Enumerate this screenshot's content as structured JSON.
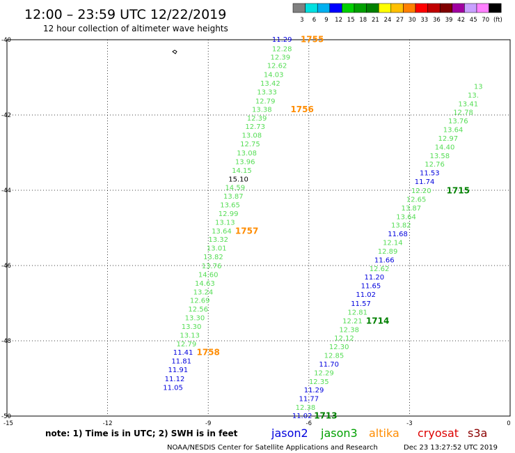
{
  "title": "12:00 – 23:59 UTC 12/22/2019",
  "subtitle": "12 hour collection of altimeter wave heights",
  "colorbar": {
    "colors": [
      "#808080",
      "#00e0e0",
      "#00b0f0",
      "#0000ff",
      "#00d000",
      "#00a000",
      "#008000",
      "#ffff00",
      "#ffc000",
      "#ff8000",
      "#ff0000",
      "#c00000",
      "#800000",
      "#a000a0",
      "#c8a0ff",
      "#ff80ff",
      "#000000"
    ],
    "labels": [
      "3",
      "6",
      "9",
      "12",
      "15",
      "18",
      "21",
      "24",
      "27",
      "30",
      "33",
      "36",
      "39",
      "42",
      "45",
      "70",
      "(ft)"
    ]
  },
  "note": "note:  1) Time is in UTC;  2) SWH is in feet",
  "legend": [
    {
      "name": "jason2",
      "color": "#0000dd"
    },
    {
      "name": "jason3",
      "color": "#00a000"
    },
    {
      "name": "altika",
      "color": "#ff8c00"
    },
    {
      "name": "cryosat",
      "color": "#dd0000"
    },
    {
      "name": "s3a",
      "color": "#8b0000"
    }
  ],
  "footer": {
    "credit": "NOAA/NESDIS Center for Satellite Applications and Research",
    "timestamp": "Dec 23 13:27:52 UTC 2019"
  },
  "chart_data": {
    "type": "scatter",
    "title": "12:00 – 23:59 UTC 12/22/2019",
    "subtitle": "12 hour collection of altimeter wave heights",
    "xlim": [
      -15,
      0
    ],
    "ylim": [
      -50,
      -40
    ],
    "x_ticks": [
      "-15",
      "-12",
      "-9",
      "-6",
      "-3",
      "0"
    ],
    "y_ticks": [
      "-40",
      "-42",
      "-44",
      "-46",
      "-48",
      "-50"
    ],
    "grid": true,
    "legend_position": "bottom",
    "value_colors": {
      "light_green": "#55dd55",
      "blue": "#0000dd",
      "orange_time": "#ff8c00",
      "green_time": "#008000"
    },
    "tracks": [
      {
        "values": [
          {
            "v": "11.29",
            "x": -6.8,
            "y": -39.98,
            "c": "blue"
          },
          {
            "v": "12.28",
            "x": -6.8,
            "y": -40.23,
            "c": "light_green"
          },
          {
            "v": "12.39",
            "x": -6.85,
            "y": -40.45,
            "c": "light_green"
          },
          {
            "v": "12.62",
            "x": -6.95,
            "y": -40.68,
            "c": "light_green"
          },
          {
            "v": "14.03",
            "x": -7.05,
            "y": -40.92,
            "c": "light_green"
          },
          {
            "v": "13.42",
            "x": -7.15,
            "y": -41.15,
            "c": "light_green"
          },
          {
            "v": "13.33",
            "x": -7.25,
            "y": -41.38,
            "c": "light_green"
          },
          {
            "v": "12.79",
            "x": -7.3,
            "y": -41.62,
            "c": "light_green"
          },
          {
            "v": "13.38",
            "x": -7.4,
            "y": -41.84,
            "c": "light_green"
          },
          {
            "v": "12.39",
            "x": -7.55,
            "y": -42.07,
            "c": "light_green"
          },
          {
            "v": "12.73",
            "x": -7.6,
            "y": -42.3,
            "c": "light_green"
          },
          {
            "v": "13.08",
            "x": -7.7,
            "y": -42.53,
            "c": "light_green"
          },
          {
            "v": "12.75",
            "x": -7.75,
            "y": -42.76,
            "c": "light_green"
          },
          {
            "v": "13.08",
            "x": -7.85,
            "y": -43.0,
            "c": "light_green"
          },
          {
            "v": "13.96",
            "x": -7.9,
            "y": -43.23,
            "c": "light_green"
          },
          {
            "v": "14.15",
            "x": -8.0,
            "y": -43.46,
            "c": "light_green"
          },
          {
            "v": "15.10",
            "x": -8.1,
            "y": -43.69,
            "c": "green"
          },
          {
            "v": "14.59",
            "x": -8.2,
            "y": -43.92,
            "c": "light_green"
          },
          {
            "v": "13.87",
            "x": -8.25,
            "y": -44.15,
            "c": "light_green"
          },
          {
            "v": "13.65",
            "x": -8.35,
            "y": -44.38,
            "c": "light_green"
          },
          {
            "v": "12.99",
            "x": -8.4,
            "y": -44.61,
            "c": "light_green"
          },
          {
            "v": "13.13",
            "x": -8.5,
            "y": -44.84,
            "c": "light_green"
          },
          {
            "v": "13.64",
            "x": -8.6,
            "y": -45.07,
            "c": "light_green"
          },
          {
            "v": "13.32",
            "x": -8.7,
            "y": -45.3,
            "c": "light_green"
          },
          {
            "v": "13.01",
            "x": -8.75,
            "y": -45.53,
            "c": "light_green"
          },
          {
            "v": "13.82",
            "x": -8.85,
            "y": -45.76,
            "c": "light_green"
          },
          {
            "v": "13.76",
            "x": -8.9,
            "y": -46.0,
            "c": "light_green"
          },
          {
            "v": "14.60",
            "x": -9.0,
            "y": -46.23,
            "c": "light_green"
          },
          {
            "v": "14.63",
            "x": -9.1,
            "y": -46.46,
            "c": "light_green"
          },
          {
            "v": "13.24",
            "x": -9.15,
            "y": -46.69,
            "c": "light_green"
          },
          {
            "v": "12.69",
            "x": -9.25,
            "y": -46.92,
            "c": "light_green"
          },
          {
            "v": "12.56",
            "x": -9.3,
            "y": -47.15,
            "c": "light_green"
          },
          {
            "v": "13.30",
            "x": -9.4,
            "y": -47.38,
            "c": "light_green"
          },
          {
            "v": "13.30",
            "x": -9.5,
            "y": -47.61,
            "c": "light_green"
          },
          {
            "v": "13.13",
            "x": -9.55,
            "y": -47.84,
            "c": "light_green"
          },
          {
            "v": "12.79",
            "x": -9.65,
            "y": -48.07,
            "c": "light_green"
          },
          {
            "v": "11.41",
            "x": -9.75,
            "y": -48.3,
            "c": "blue"
          },
          {
            "v": "11.81",
            "x": -9.8,
            "y": -48.53,
            "c": "blue"
          },
          {
            "v": "11.91",
            "x": -9.9,
            "y": -48.76,
            "c": "blue"
          },
          {
            "v": "11.12",
            "x": -10.0,
            "y": -49.0,
            "c": "blue"
          },
          {
            "v": "11.05",
            "x": -10.05,
            "y": -49.23,
            "c": "blue"
          }
        ],
        "times": [
          {
            "label": "1755",
            "x": -5.9,
            "y": -39.98,
            "c": "orange_time"
          },
          {
            "label": "1756",
            "x": -6.2,
            "y": -41.84,
            "c": "orange_time"
          },
          {
            "label": "1757",
            "x": -7.85,
            "y": -45.07,
            "c": "orange_time"
          },
          {
            "label": "1758",
            "x": -9.0,
            "y": -48.3,
            "c": "orange_time"
          }
        ]
      },
      {
        "values": [
          {
            "v": "11.02",
            "x": -6.2,
            "y": -49.98,
            "c": "blue"
          },
          {
            "v": "12.38",
            "x": -6.1,
            "y": -49.76,
            "c": "light_green"
          },
          {
            "v": "11.77",
            "x": -6.0,
            "y": -49.53,
            "c": "blue"
          },
          {
            "v": "11.29",
            "x": -5.85,
            "y": -49.3,
            "c": "blue"
          },
          {
            "v": "12.35",
            "x": -5.7,
            "y": -49.07,
            "c": "light_green"
          },
          {
            "v": "12.29",
            "x": -5.55,
            "y": -48.84,
            "c": "light_green"
          },
          {
            "v": "11.70",
            "x": -5.4,
            "y": -48.61,
            "c": "blue"
          },
          {
            "v": "12.85",
            "x": -5.25,
            "y": -48.38,
            "c": "light_green"
          },
          {
            "v": "12.30",
            "x": -5.1,
            "y": -48.15,
            "c": "light_green"
          },
          {
            "v": "12.12",
            "x": -4.95,
            "y": -47.92,
            "c": "light_green"
          },
          {
            "v": "12.38",
            "x": -4.8,
            "y": -47.69,
            "c": "light_green"
          },
          {
            "v": "12.21",
            "x": -4.7,
            "y": -47.46,
            "c": "light_green"
          },
          {
            "v": "12.81",
            "x": -4.55,
            "y": -47.23,
            "c": "light_green"
          },
          {
            "v": "11.57",
            "x": -4.45,
            "y": -47.0,
            "c": "blue"
          },
          {
            "v": "11.02",
            "x": -4.3,
            "y": -46.76,
            "c": "blue"
          },
          {
            "v": "11.65",
            "x": -4.15,
            "y": -46.53,
            "c": "blue"
          },
          {
            "v": "11.20",
            "x": -4.05,
            "y": -46.3,
            "c": "blue"
          },
          {
            "v": "12.62",
            "x": -3.9,
            "y": -46.07,
            "c": "light_green"
          },
          {
            "v": "11.66",
            "x": -3.75,
            "y": -45.84,
            "c": "blue"
          },
          {
            "v": "12.89",
            "x": -3.65,
            "y": -45.61,
            "c": "light_green"
          },
          {
            "v": "12.14",
            "x": -3.5,
            "y": -45.38,
            "c": "light_green"
          },
          {
            "v": "11.68",
            "x": -3.35,
            "y": -45.15,
            "c": "blue"
          },
          {
            "v": "13.82",
            "x": -3.25,
            "y": -44.92,
            "c": "light_green"
          },
          {
            "v": "13.64",
            "x": -3.1,
            "y": -44.69,
            "c": "light_green"
          },
          {
            "v": "13.87",
            "x": -2.95,
            "y": -44.46,
            "c": "light_green"
          },
          {
            "v": "12.65",
            "x": -2.8,
            "y": -44.23,
            "c": "light_green"
          },
          {
            "v": "12.20",
            "x": -2.65,
            "y": -44.0,
            "c": "light_green"
          },
          {
            "v": "11.74",
            "x": -2.55,
            "y": -43.76,
            "c": "blue"
          },
          {
            "v": "11.53",
            "x": -2.4,
            "y": -43.53,
            "c": "blue"
          },
          {
            "v": "12.76",
            "x": -2.25,
            "y": -43.3,
            "c": "light_green"
          },
          {
            "v": "13.58",
            "x": -2.1,
            "y": -43.07,
            "c": "light_green"
          },
          {
            "v": "14.40",
            "x": -1.95,
            "y": -42.84,
            "c": "light_green"
          },
          {
            "v": "12.97",
            "x": -1.85,
            "y": -42.61,
            "c": "light_green"
          },
          {
            "v": "13.64",
            "x": -1.7,
            "y": -42.38,
            "c": "light_green"
          },
          {
            "v": "13.76",
            "x": -1.55,
            "y": -42.15,
            "c": "light_green"
          },
          {
            "v": "12.78",
            "x": -1.4,
            "y": -41.92,
            "c": "light_green"
          },
          {
            "v": "13.41",
            "x": -1.25,
            "y": -41.69,
            "c": "light_green"
          },
          {
            "v": "13.",
            "x": -1.1,
            "y": -41.46,
            "c": "light_green"
          },
          {
            "v": "13",
            "x": -0.95,
            "y": -41.23,
            "c": "light_green"
          }
        ],
        "times": [
          {
            "label": "1713",
            "x": -5.5,
            "y": -49.98,
            "c": "green_time"
          },
          {
            "label": "1714",
            "x": -3.95,
            "y": -47.46,
            "c": "green_time"
          },
          {
            "label": "1715",
            "x": -1.55,
            "y": -44.0,
            "c": "green_time"
          }
        ]
      }
    ]
  }
}
